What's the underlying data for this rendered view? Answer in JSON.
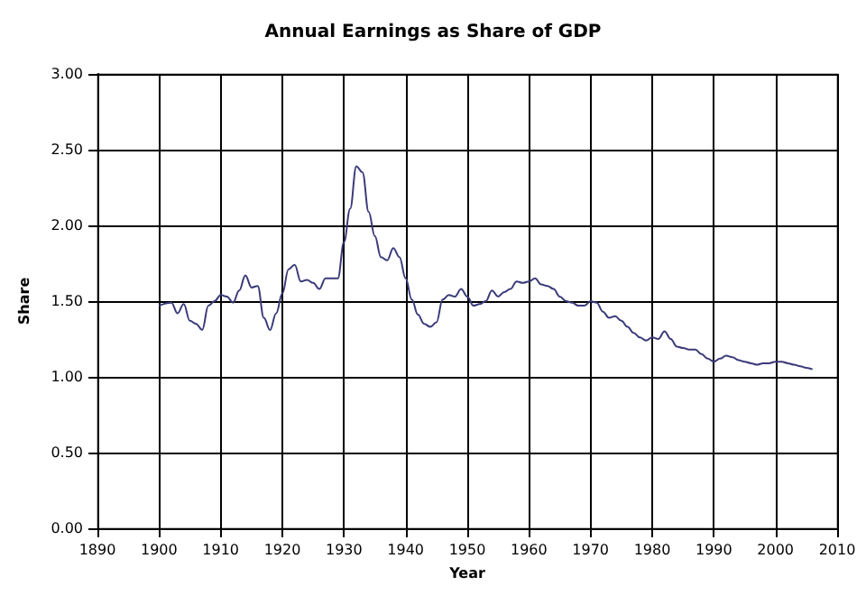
{
  "chart_data": {
    "type": "line",
    "title": "Annual Earnings as Share of GDP",
    "xlabel": "Year",
    "ylabel": "Share",
    "x": [
      1900,
      1902,
      1903,
      1904,
      1905,
      1906,
      1907,
      1908,
      1909,
      1910,
      1911,
      1912,
      1913,
      1914,
      1915,
      1916,
      1917,
      1918,
      1919,
      1920,
      1921,
      1922,
      1923,
      1924,
      1925,
      1926,
      1927,
      1928,
      1929,
      1930,
      1931,
      1932,
      1933,
      1934,
      1935,
      1936,
      1937,
      1938,
      1939,
      1940,
      1941,
      1942,
      1943,
      1944,
      1945,
      1946,
      1947,
      1948,
      1949,
      1950,
      1951,
      1952,
      1953,
      1954,
      1955,
      1956,
      1957,
      1958,
      1959,
      1960,
      1961,
      1962,
      1963,
      1964,
      1965,
      1966,
      1967,
      1968,
      1969,
      1970,
      1971,
      1972,
      1973,
      1974,
      1975,
      1976,
      1977,
      1978,
      1979,
      1980,
      1981,
      1982,
      1983,
      1984,
      1985,
      1986,
      1987,
      1988,
      1989,
      1990,
      1991,
      1992,
      1993,
      1994,
      1995,
      1996,
      1997,
      1998,
      1999,
      2000,
      2001,
      2002,
      2003,
      2004,
      2005,
      2006
    ],
    "series": [
      {
        "color": "#3a3a7a",
        "values": [
          1.47,
          1.49,
          1.42,
          1.48,
          1.37,
          1.35,
          1.31,
          1.47,
          1.5,
          1.54,
          1.53,
          1.49,
          1.57,
          1.67,
          1.59,
          1.6,
          1.39,
          1.31,
          1.42,
          1.55,
          1.71,
          1.74,
          1.63,
          1.64,
          1.62,
          1.58,
          1.65,
          1.65,
          1.65,
          1.89,
          2.11,
          2.39,
          2.35,
          2.09,
          1.93,
          1.79,
          1.77,
          1.85,
          1.79,
          1.65,
          1.51,
          1.41,
          1.35,
          1.33,
          1.36,
          1.51,
          1.54,
          1.53,
          1.58,
          1.53,
          1.47,
          1.48,
          1.5,
          1.57,
          1.53,
          1.56,
          1.58,
          1.63,
          1.62,
          1.63,
          1.65,
          1.61,
          1.6,
          1.58,
          1.53,
          1.5,
          1.49,
          1.47,
          1.47,
          1.5,
          1.49,
          1.43,
          1.39,
          1.4,
          1.37,
          1.33,
          1.29,
          1.26,
          1.24,
          1.26,
          1.25,
          1.3,
          1.25,
          1.2,
          1.19,
          1.18,
          1.18,
          1.15,
          1.12,
          1.1,
          1.12,
          1.14,
          1.13,
          1.11,
          1.1,
          1.09,
          1.08,
          1.09,
          1.09,
          1.1,
          1.1,
          1.09,
          1.08,
          1.07,
          1.06,
          1.05
        ]
      }
    ],
    "xlim": [
      1890,
      2010
    ],
    "xticks": [
      1890,
      1900,
      1910,
      1920,
      1930,
      1940,
      1950,
      1960,
      1970,
      1980,
      1990,
      2000,
      2010
    ],
    "ylim": [
      0,
      3
    ],
    "yticks": [
      {
        "value": 0,
        "label": "0.00"
      },
      {
        "value": 0.5,
        "label": "0.50"
      },
      {
        "value": 1,
        "label": "1.00"
      },
      {
        "value": 1.5,
        "label": "1.50"
      },
      {
        "value": 2,
        "label": "2.00"
      },
      {
        "value": 2.5,
        "label": "2.50"
      },
      {
        "value": 3,
        "label": "3.00"
      }
    ],
    "grid": true,
    "marker": "none",
    "line_style": "solid"
  }
}
